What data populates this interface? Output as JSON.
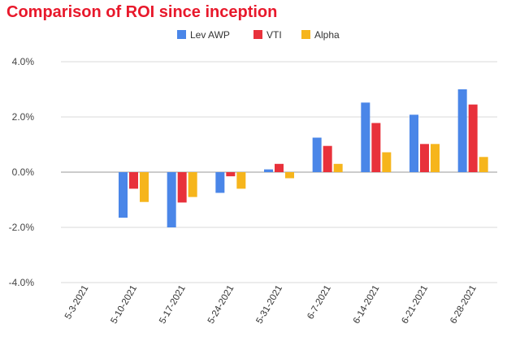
{
  "chart_data": {
    "type": "bar",
    "title": "Comparison of ROI since inception",
    "xlabel": "",
    "ylabel": "",
    "categories": [
      "5-3-2021",
      "5-10-2021",
      "5-17-2021",
      "5-24-2021",
      "5-31-2021",
      "6-7-2021",
      "6-14-2021",
      "6-21-2021",
      "6-28-2021"
    ],
    "series": [
      {
        "name": "Lev AWP",
        "color": "#4a86e8",
        "values": [
          0,
          -1.65,
          -2.0,
          -0.75,
          0.1,
          1.25,
          2.52,
          2.08,
          3.0
        ]
      },
      {
        "name": "VTI",
        "color": "#e8313b",
        "values": [
          0,
          -0.6,
          -1.1,
          -0.15,
          0.3,
          0.95,
          1.78,
          1.02,
          2.45
        ]
      },
      {
        "name": "Alpha",
        "color": "#f6b51c",
        "values": [
          0,
          -1.08,
          -0.9,
          -0.6,
          -0.22,
          0.3,
          0.72,
          1.02,
          0.55
        ]
      }
    ],
    "ylim": [
      -4,
      4
    ],
    "yticks": [
      -4,
      -2,
      0,
      2,
      4
    ],
    "ytick_labels": [
      "-4.0%",
      "-2.0%",
      "0.0%",
      "2.0%",
      "4.0%"
    ],
    "grid": true,
    "legend_position": "top-center"
  }
}
